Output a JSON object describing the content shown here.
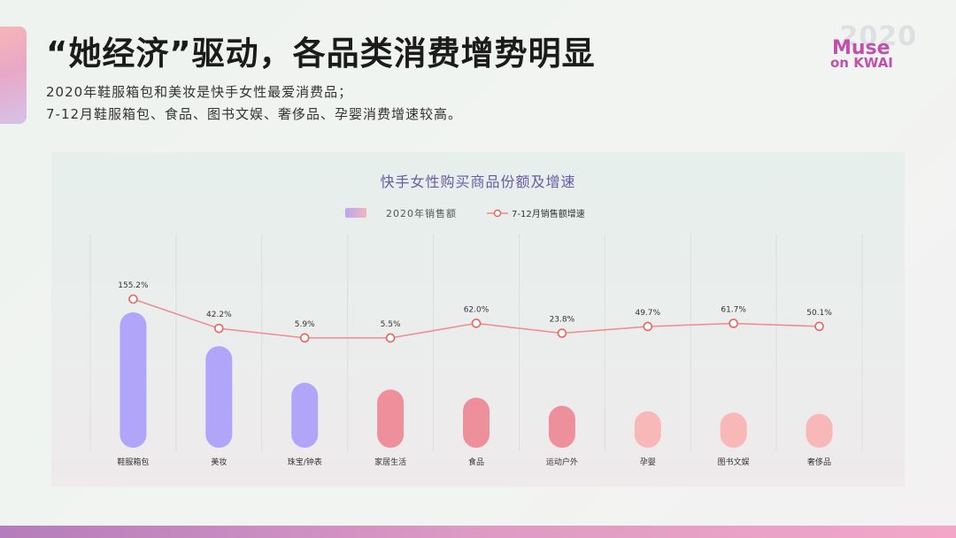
{
  "page": {
    "title": "“她经济”驱动，各品类消费增势明显",
    "subtitle_lines": [
      "2020年鞋服箱包和美妆是快手女性最爱消费品；",
      "7-12月鞋服箱包、食品、图书文娱、奢侈品、孕婴消费增速较高。"
    ],
    "logo": {
      "line1": "Muse",
      "line2": "on KWAI",
      "year": "2020"
    }
  },
  "chart_data": {
    "type": "bar",
    "title": "快手女性购买商品份额及增速",
    "categories": [
      "鞋服箱包",
      "美妆",
      "珠宝/钟表",
      "家居生活",
      "食品",
      "运动户外",
      "孕婴",
      "图书文娱",
      "奢侈品"
    ],
    "series": [
      {
        "name": "2020年销售额",
        "type": "bar",
        "values": [
          100,
          75,
          48,
          43,
          37,
          31,
          27,
          26,
          25
        ],
        "colors": [
          "#b0a5f9",
          "#b0a5f9",
          "#b0a5f9",
          "#ee909b",
          "#ee909b",
          "#ee909b",
          "#f9b8b8",
          "#f9b8b8",
          "#f9b8b8"
        ]
      },
      {
        "name": "7-12月销售额增速",
        "type": "line",
        "values": [
          155.2,
          42.2,
          5.9,
          5.5,
          62.0,
          23.8,
          49.7,
          61.7,
          50.1
        ],
        "labels": [
          "155.2%",
          "42.2%",
          "5.9%",
          "5.5%",
          "62.0%",
          "23.8%",
          "49.7%",
          "61.7%",
          "50.1%"
        ],
        "color": "#ef8a8f"
      }
    ],
    "legend": {
      "position": "top-center"
    },
    "grid": "vertical"
  }
}
